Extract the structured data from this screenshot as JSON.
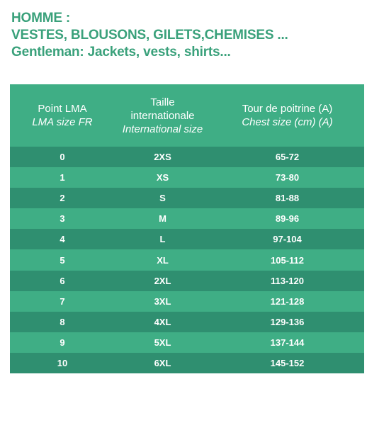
{
  "heading": {
    "line1": "HOMME :",
    "line2": "VESTES, BLOUSONS, GILETS,CHEMISES ...",
    "line3": "Gentleman: Jackets, vests, shirts..."
  },
  "table": {
    "headers": [
      {
        "lines": [
          "Point LMA"
        ],
        "italic_lines": [
          "LMA size FR"
        ]
      },
      {
        "lines": [
          "Taille",
          "internationale"
        ],
        "italic_lines": [
          "International size"
        ]
      },
      {
        "lines": [
          "Tour de poitrine (A)"
        ],
        "italic_lines": [
          "Chest size (cm) (A)"
        ]
      }
    ],
    "rows": [
      [
        "0",
        "2XS",
        "65-72"
      ],
      [
        "1",
        "XS",
        "73-80"
      ],
      [
        "2",
        "S",
        "81-88"
      ],
      [
        "3",
        "M",
        "89-96"
      ],
      [
        "4",
        "L",
        "97-104"
      ],
      [
        "5",
        "XL",
        "105-112"
      ],
      [
        "6",
        "2XL",
        "113-120"
      ],
      [
        "7",
        "3XL",
        "121-128"
      ],
      [
        "8",
        "4XL",
        "129-136"
      ],
      [
        "9",
        "5XL",
        "137-144"
      ],
      [
        "10",
        "6XL",
        "145-152"
      ]
    ]
  },
  "colors": {
    "heading": "#3aa17b",
    "header_bg": "#3fae85",
    "row_dark": "#2f8f70",
    "row_light": "#3fae85",
    "text_on_table": "#ffffff"
  }
}
